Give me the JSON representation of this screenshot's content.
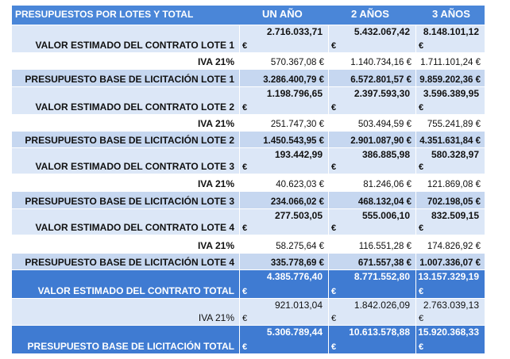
{
  "header": {
    "title": "PRESUPUESTOS POR LOTES Y TOTAL",
    "col1": "UN AÑO",
    "col2": "2 AÑOS",
    "col3": "3 AÑOS"
  },
  "currency_symbol": "€",
  "rows": [
    {
      "label": "VALOR ESTIMADO DEL CONTRATO LOTE 1",
      "v1": "2.716.033,71",
      "v2": "5.432.067,42",
      "v3": "8.148.101,12"
    },
    {
      "label": "IVA 21%",
      "v1": "570.367,08 €",
      "v2": "1.140.734,16 €",
      "v3": "1.711.101,24 €"
    },
    {
      "label": "PRESUPUESTO BASE DE LICITACIÓN LOTE 1",
      "v1": "3.286.400,79 €",
      "v2": "6.572.801,57 €",
      "v3": "9.859.202,36 €"
    },
    {
      "label": "VALOR ESTIMADO DEL CONTRATO LOTE 2",
      "v1": "1.198.796,65",
      "v2": "2.397.593,30",
      "v3": "3.596.389,95"
    },
    {
      "label": "IVA 21%",
      "v1": "251.747,30 €",
      "v2": "503.494,59 €",
      "v3": "755.241,89 €"
    },
    {
      "label": "PRESUPUESTO BASE DE LICITACIÓN LOTE 2",
      "v1": "1.450.543,95 €",
      "v2": "2.901.087,90 €",
      "v3": "4.351.631,84 €"
    },
    {
      "label": "VALOR ESTIMADO DEL CONTRATO LOTE 3",
      "v1": "193.442,99",
      "v2": "386.885,98",
      "v3": "580.328,97"
    },
    {
      "label": "IVA 21%",
      "v1": "40.623,03 €",
      "v2": "81.246,06 €",
      "v3": "121.869,08 €"
    },
    {
      "label": "PRESUPUESTO BASE DE LICITACIÓN LOTE 3",
      "v1": "234.066,02 €",
      "v2": "468.132,04 €",
      "v3": "702.198,05 €"
    },
    {
      "label": "VALOR ESTIMADO DEL CONTRATO LOTE 4",
      "v1": "277.503,05",
      "v2": "555.006,10",
      "v3": "832.509,15"
    },
    {
      "label": "IVA 21%",
      "v1": "58.275,64 €",
      "v2": "116.551,28 €",
      "v3": "174.826,92 €"
    },
    {
      "label": "PRESUPUESTO BASE DE LICITACIÓN LOTE 4",
      "v1": "335.778,69 €",
      "v2": "671.557,38 €",
      "v3": "1.007.336,07 €"
    },
    {
      "label": "VALOR ESTIMADO DEL CONTRATO TOTAL",
      "v1": "4.385.776,40",
      "v2": "8.771.552,80",
      "v3": "13.157.329,19"
    },
    {
      "label": "IVA 21%",
      "v1": "921.013,04",
      "v2": "1.842.026,09",
      "v3": "2.763.039,13"
    },
    {
      "label": "PRESUPUESTO BASE DE LICITACIÓN TOTAL",
      "v1": "5.306.789,44",
      "v2": "10.613.578,88",
      "v3": "15.920.368,33"
    }
  ]
}
